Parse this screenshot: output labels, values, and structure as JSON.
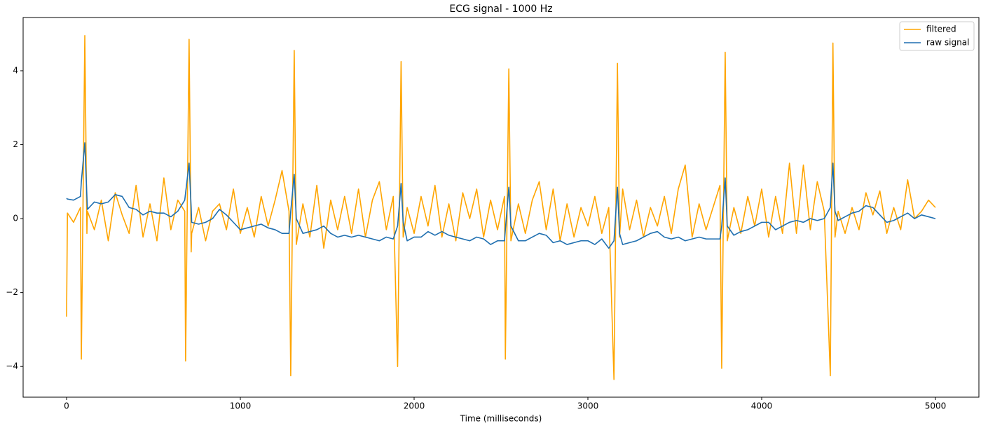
{
  "chart_data": {
    "type": "line",
    "title": "ECG signal - 1000 Hz",
    "x_label": "Time (milliseconds)",
    "x": [
      0,
      5,
      40,
      80,
      85,
      105,
      117,
      120,
      160,
      200,
      240,
      280,
      320,
      360,
      400,
      440,
      480,
      520,
      560,
      600,
      640,
      680,
      685,
      705,
      717,
      720,
      760,
      800,
      840,
      880,
      920,
      960,
      1000,
      1040,
      1080,
      1120,
      1160,
      1200,
      1240,
      1280,
      1290,
      1310,
      1322,
      1360,
      1400,
      1440,
      1480,
      1520,
      1560,
      1600,
      1640,
      1680,
      1720,
      1760,
      1800,
      1840,
      1880,
      1905,
      1925,
      1937,
      1960,
      2000,
      2040,
      2080,
      2120,
      2160,
      2200,
      2240,
      2280,
      2320,
      2360,
      2400,
      2440,
      2480,
      2520,
      2525,
      2545,
      2557,
      2600,
      2640,
      2680,
      2720,
      2760,
      2800,
      2840,
      2880,
      2920,
      2960,
      3000,
      3040,
      3080,
      3120,
      3150,
      3170,
      3182,
      3200,
      3240,
      3280,
      3320,
      3360,
      3400,
      3440,
      3480,
      3520,
      3560,
      3600,
      3640,
      3680,
      3720,
      3760,
      3770,
      3790,
      3802,
      3840,
      3880,
      3920,
      3960,
      4000,
      4040,
      4080,
      4120,
      4160,
      4200,
      4240,
      4280,
      4320,
      4360,
      4395,
      4410,
      4422,
      4440,
      4480,
      4520,
      4560,
      4600,
      4640,
      4680,
      4720,
      4760,
      4800,
      4840,
      4880,
      4920,
      4960,
      5000
    ],
    "series": [
      {
        "name": "filtered",
        "color": "#ffa500",
        "values": [
          -2.65,
          0.15,
          -0.1,
          0.3,
          -3.8,
          4.95,
          -0.4,
          0.2,
          -0.3,
          0.5,
          -0.6,
          0.7,
          0.1,
          -0.4,
          0.9,
          -0.5,
          0.4,
          -0.6,
          1.1,
          -0.3,
          0.5,
          0.2,
          -3.85,
          4.85,
          -0.9,
          -0.4,
          0.3,
          -0.6,
          0.2,
          0.4,
          -0.3,
          0.8,
          -0.4,
          0.3,
          -0.5,
          0.6,
          -0.2,
          0.5,
          1.3,
          0.2,
          -4.25,
          4.55,
          -0.7,
          0.4,
          -0.5,
          0.9,
          -0.8,
          0.5,
          -0.3,
          0.6,
          -0.4,
          0.8,
          -0.5,
          0.5,
          1.0,
          -0.3,
          0.6,
          -4.0,
          4.25,
          -0.5,
          0.3,
          -0.4,
          0.6,
          -0.2,
          0.9,
          -0.5,
          0.4,
          -0.6,
          0.7,
          0.0,
          0.8,
          -0.5,
          0.5,
          -0.3,
          0.6,
          -3.8,
          4.05,
          -0.6,
          0.4,
          -0.4,
          0.5,
          1.0,
          -0.3,
          0.8,
          -0.6,
          0.4,
          -0.5,
          0.3,
          -0.2,
          0.6,
          -0.4,
          0.3,
          -4.35,
          4.2,
          -0.5,
          0.8,
          -0.3,
          0.5,
          -0.5,
          0.3,
          -0.2,
          0.6,
          -0.4,
          0.8,
          1.45,
          -0.5,
          0.4,
          -0.3,
          0.3,
          0.9,
          -4.05,
          4.5,
          -0.6,
          0.3,
          -0.4,
          0.6,
          -0.2,
          0.8,
          -0.5,
          0.6,
          -0.4,
          1.5,
          -0.4,
          1.45,
          -0.3,
          1.0,
          0.2,
          -4.25,
          4.75,
          -0.5,
          0.2,
          -0.4,
          0.3,
          -0.3,
          0.7,
          0.1,
          0.75,
          -0.4,
          0.3,
          -0.3,
          1.05,
          0.0,
          0.2,
          0.5,
          0.3
        ]
      },
      {
        "name": "raw signal",
        "color": "#1f6fb0",
        "values": [
          0.55,
          0.53,
          0.5,
          0.6,
          1.0,
          2.05,
          0.6,
          0.25,
          0.45,
          0.4,
          0.45,
          0.65,
          0.6,
          0.3,
          0.25,
          0.1,
          0.2,
          0.15,
          0.15,
          0.05,
          0.2,
          0.5,
          0.7,
          1.5,
          0.3,
          -0.1,
          -0.15,
          -0.1,
          0.0,
          0.25,
          0.1,
          -0.1,
          -0.3,
          -0.25,
          -0.2,
          -0.15,
          -0.25,
          -0.3,
          -0.4,
          -0.4,
          0.2,
          1.2,
          0.0,
          -0.4,
          -0.35,
          -0.3,
          -0.2,
          -0.4,
          -0.5,
          -0.45,
          -0.5,
          -0.45,
          -0.5,
          -0.55,
          -0.6,
          -0.5,
          -0.55,
          -0.2,
          0.95,
          -0.1,
          -0.6,
          -0.5,
          -0.5,
          -0.35,
          -0.45,
          -0.35,
          -0.45,
          -0.5,
          -0.55,
          -0.6,
          -0.5,
          -0.55,
          -0.7,
          -0.6,
          -0.6,
          -0.3,
          0.85,
          -0.2,
          -0.6,
          -0.6,
          -0.5,
          -0.4,
          -0.45,
          -0.65,
          -0.6,
          -0.7,
          -0.65,
          -0.6,
          -0.6,
          -0.7,
          -0.55,
          -0.8,
          -0.6,
          0.85,
          -0.4,
          -0.7,
          -0.65,
          -0.6,
          -0.5,
          -0.4,
          -0.35,
          -0.5,
          -0.55,
          -0.5,
          -0.6,
          -0.55,
          -0.5,
          -0.55,
          -0.55,
          -0.55,
          -0.2,
          1.1,
          -0.2,
          -0.45,
          -0.35,
          -0.3,
          -0.2,
          -0.1,
          -0.1,
          -0.3,
          -0.2,
          -0.1,
          -0.05,
          -0.1,
          0.0,
          -0.05,
          0.0,
          0.3,
          1.5,
          0.2,
          -0.05,
          0.05,
          0.15,
          0.2,
          0.35,
          0.3,
          0.1,
          -0.1,
          -0.05,
          0.05,
          0.15,
          0.0,
          0.1,
          0.05,
          0.0
        ]
      }
    ],
    "xlim": [
      -250,
      5250
    ],
    "xticks": [
      0,
      1000,
      2000,
      3000,
      4000,
      5000
    ],
    "ylim": [
      -4.83,
      5.44
    ],
    "yticks": [
      {
        "value": -4,
        "label": "−4"
      },
      {
        "value": -2,
        "label": "−2"
      },
      0,
      2,
      4
    ],
    "legend": "upper right"
  }
}
